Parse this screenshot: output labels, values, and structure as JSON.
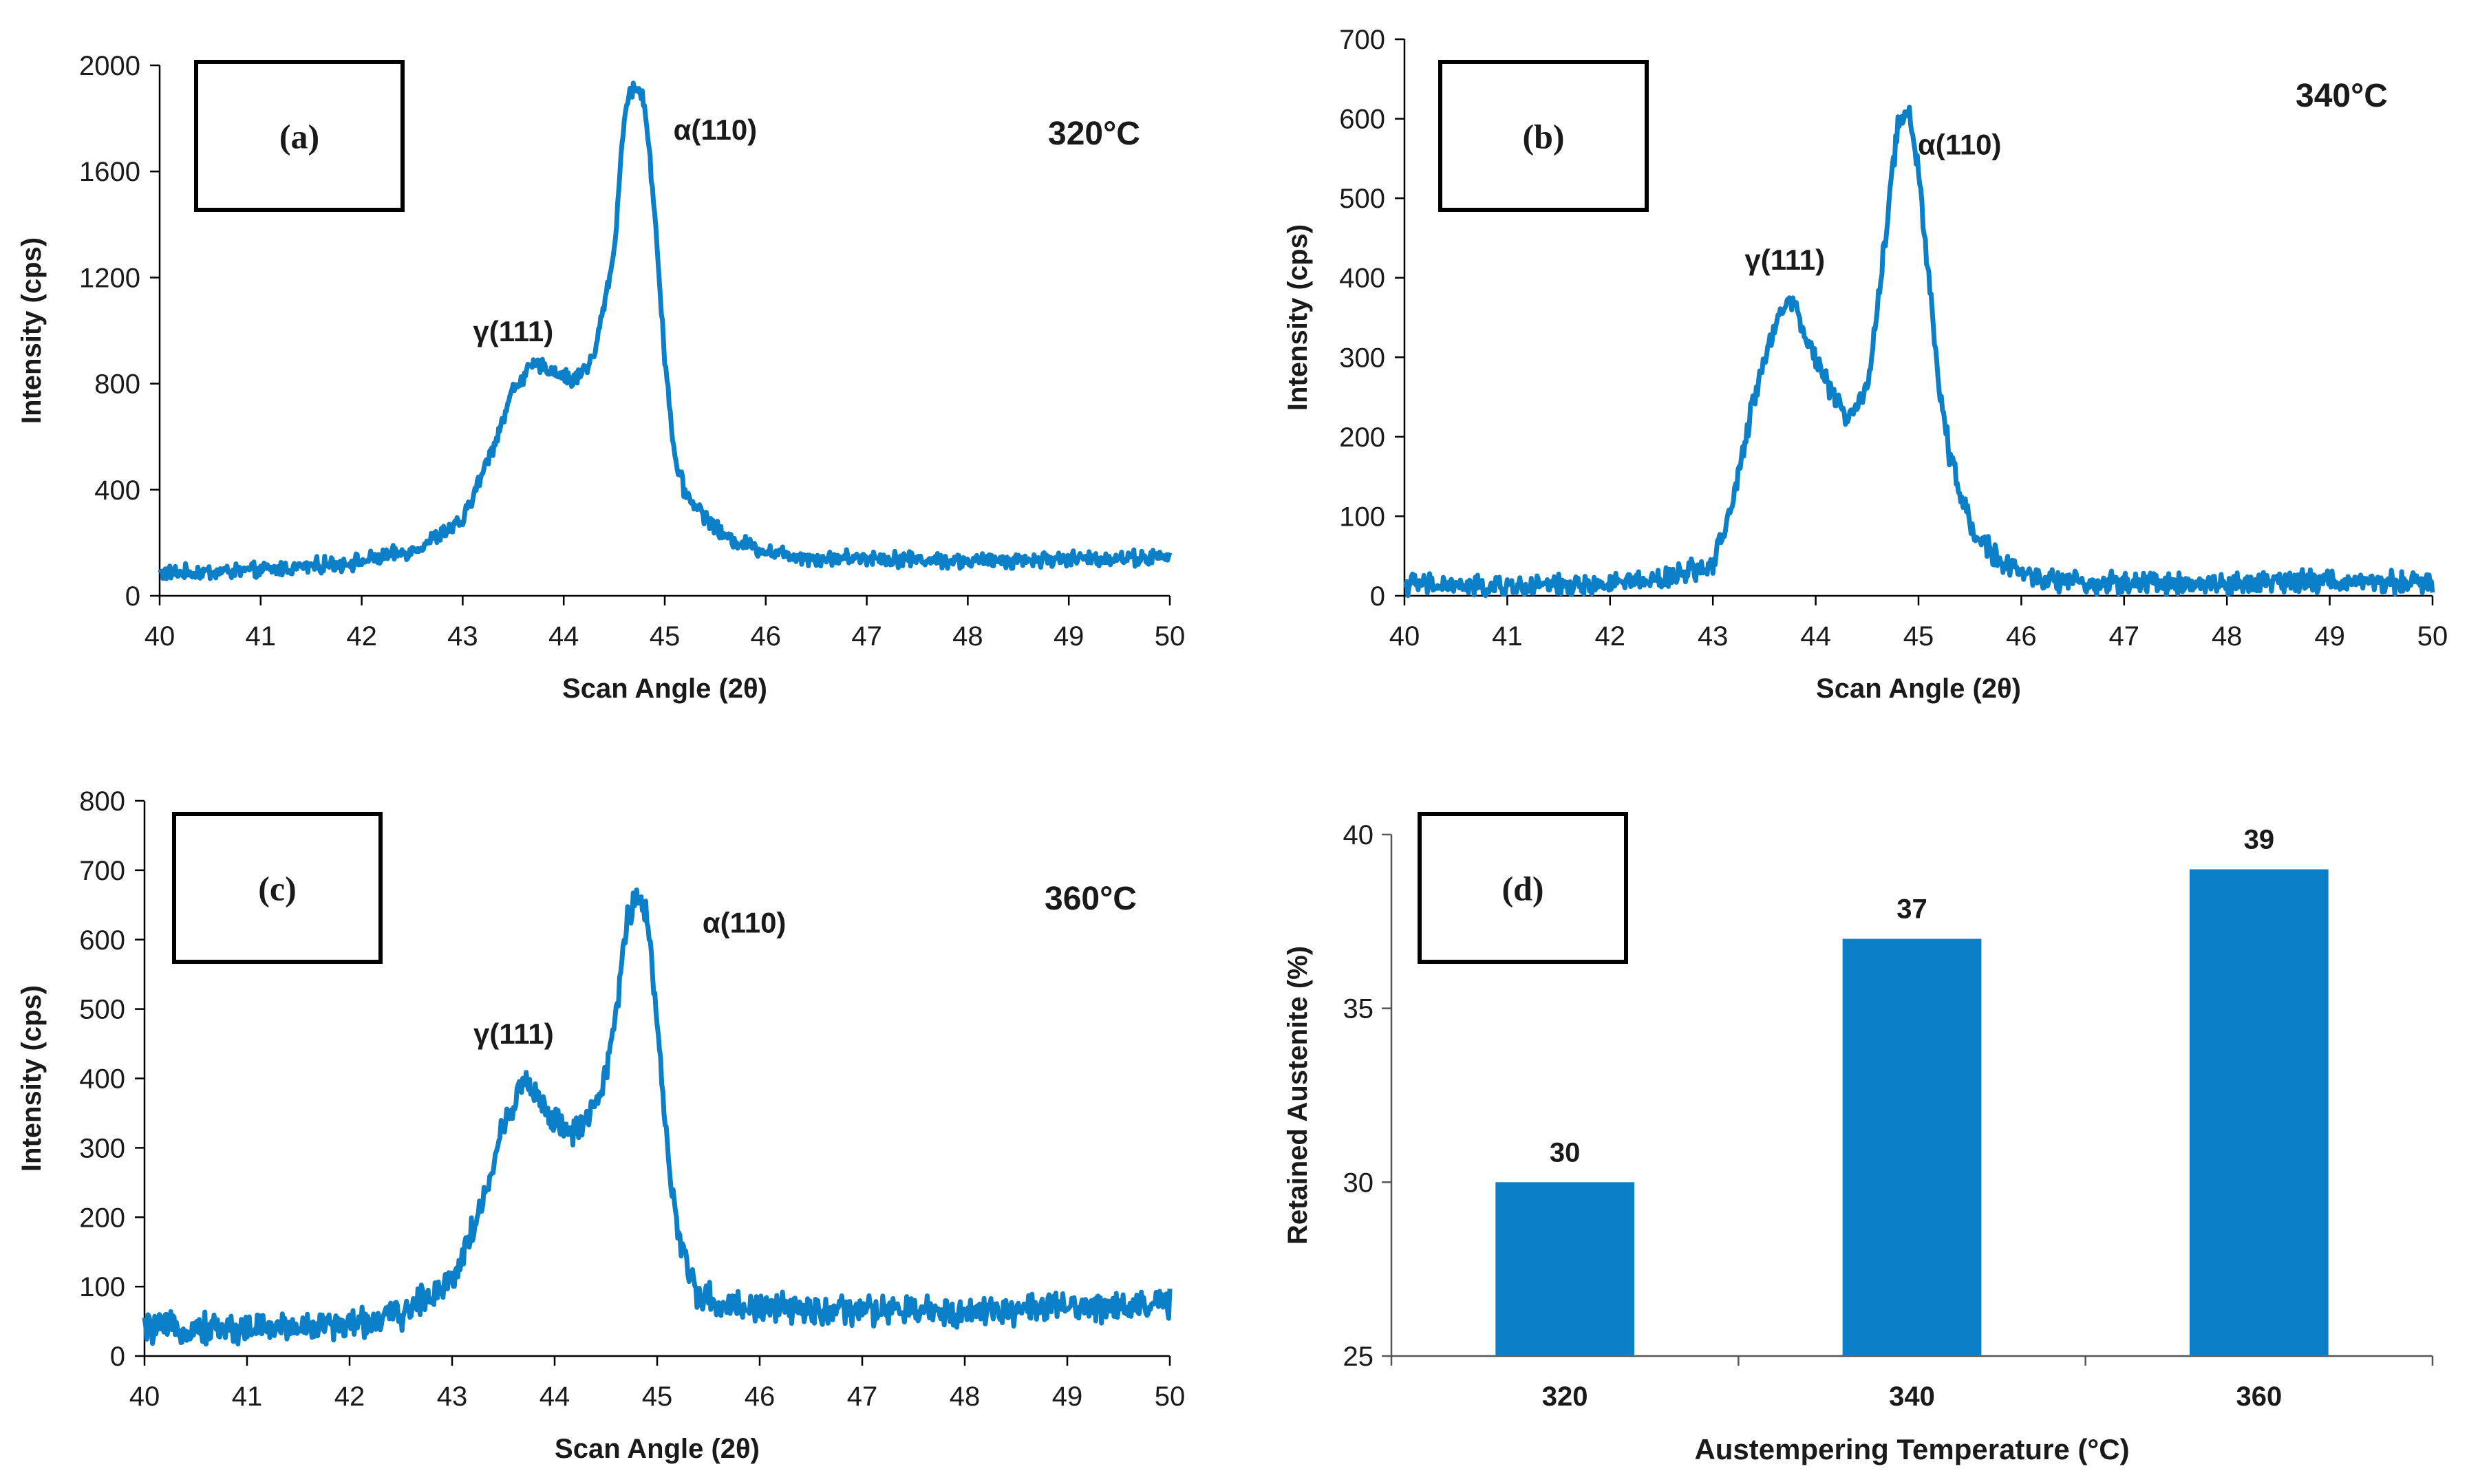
{
  "colors": {
    "series": "#0b80c9",
    "axis": "#000000",
    "text": "#1a1a1a",
    "background": "#ffffff"
  },
  "chart_data": [
    {
      "id": "a",
      "type": "line",
      "panel_label": "(a)",
      "temperature_label": "320°C",
      "xlabel": "Scan Angle (2θ)",
      "ylabel": "Intensity (cps)",
      "xlim": [
        40,
        50
      ],
      "ylim": [
        0,
        2000
      ],
      "x_ticks": [
        "40",
        "41",
        "42",
        "43",
        "44",
        "45",
        "46",
        "47",
        "48",
        "49",
        "50"
      ],
      "y_ticks": [
        "0",
        "400",
        "800",
        "1200",
        "1600",
        "2000"
      ],
      "noise": 22,
      "annotations": [
        {
          "text": "γ(111)",
          "x": 43.5,
          "y": 960
        },
        {
          "text": "α(110)",
          "x": 45.5,
          "y": 1720
        }
      ],
      "series": [
        {
          "name": "320°C",
          "x": [
            40,
            41,
            42,
            42.5,
            43,
            43.3,
            43.5,
            43.7,
            43.9,
            44.1,
            44.3,
            44.5,
            44.6,
            44.7,
            44.8,
            44.9,
            45,
            45.1,
            45.2,
            45.4,
            45.6,
            46,
            46.5,
            47,
            48,
            49,
            50
          ],
          "y": [
            85,
            95,
            130,
            170,
            280,
            560,
            780,
            870,
            850,
            810,
            900,
            1300,
            1820,
            1930,
            1860,
            1450,
            900,
            520,
            390,
            300,
            220,
            170,
            140,
            145,
            130,
            140,
            145
          ]
        }
      ]
    },
    {
      "id": "b",
      "type": "line",
      "panel_label": "(b)",
      "temperature_label": "340°C",
      "xlabel": "Scan Angle (2θ)",
      "ylabel": "Intensity (cps)",
      "xlim": [
        40,
        50
      ],
      "ylim": [
        0,
        700
      ],
      "x_ticks": [
        "40",
        "41",
        "42",
        "43",
        "44",
        "45",
        "46",
        "47",
        "48",
        "49",
        "50"
      ],
      "y_ticks": [
        "0",
        "100",
        "200",
        "300",
        "400",
        "500",
        "600",
        "700"
      ],
      "noise": 10,
      "annotations": [
        {
          "text": "γ(111)",
          "x": 43.7,
          "y": 410
        },
        {
          "text": "α(110)",
          "x": 45.4,
          "y": 555
        }
      ],
      "series": [
        {
          "name": "340°C",
          "x": [
            40,
            41,
            42,
            42.5,
            43,
            43.2,
            43.4,
            43.6,
            43.75,
            43.9,
            44.1,
            44.3,
            44.5,
            44.6,
            44.7,
            44.8,
            44.9,
            45,
            45.1,
            45.2,
            45.3,
            45.5,
            45.8,
            46.2,
            47,
            48,
            49,
            50
          ],
          "y": [
            15,
            10,
            15,
            20,
            40,
            120,
            250,
            340,
            380,
            330,
            270,
            220,
            260,
            360,
            480,
            590,
            620,
            530,
            400,
            260,
            180,
            90,
            40,
            20,
            15,
            15,
            20,
            15
          ]
        }
      ]
    },
    {
      "id": "c",
      "type": "line",
      "panel_label": "(c)",
      "temperature_label": "360°C",
      "xlabel": "Scan Angle (2θ)",
      "ylabel": "Intensity (cps)",
      "xlim": [
        40,
        50
      ],
      "ylim": [
        0,
        800
      ],
      "x_ticks": [
        "40",
        "41",
        "42",
        "43",
        "44",
        "45",
        "46",
        "47",
        "48",
        "49",
        "50"
      ],
      "y_ticks": [
        "0",
        "100",
        "200",
        "300",
        "400",
        "500",
        "600",
        "700",
        "800"
      ],
      "noise": 16,
      "annotations": [
        {
          "text": "γ(111)",
          "x": 43.6,
          "y": 450
        },
        {
          "text": "α(110)",
          "x": 45.85,
          "y": 610
        }
      ],
      "series": [
        {
          "name": "360°C",
          "x": [
            40,
            41,
            42,
            42.5,
            43,
            43.3,
            43.5,
            43.7,
            43.9,
            44.1,
            44.3,
            44.5,
            44.6,
            44.7,
            44.8,
            44.9,
            45,
            45.1,
            45.2,
            45.4,
            45.6,
            46,
            46.5,
            47,
            48,
            49,
            50
          ],
          "y": [
            40,
            40,
            45,
            60,
            110,
            220,
            330,
            400,
            360,
            320,
            330,
            400,
            500,
            620,
            670,
            640,
            480,
            300,
            170,
            90,
            75,
            70,
            65,
            65,
            65,
            70,
            75
          ]
        }
      ]
    },
    {
      "id": "d",
      "type": "bar",
      "panel_label": "(d)",
      "xlabel": "Austempering Temperature (°C)",
      "ylabel": "Retained Austenite (%)",
      "categories": [
        "320",
        "340",
        "360"
      ],
      "values": [
        30,
        37,
        39
      ],
      "data_labels": [
        "30",
        "37",
        "39"
      ],
      "ylim": [
        25,
        40
      ],
      "y_ticks": [
        "25",
        "30",
        "35",
        "40"
      ]
    }
  ]
}
